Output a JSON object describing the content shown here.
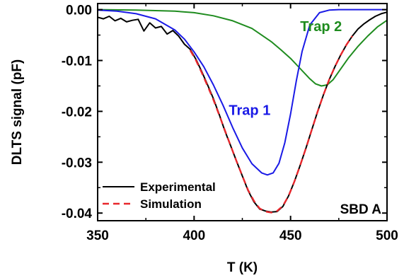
{
  "chart_data": {
    "type": "line",
    "xlabel": "T (K)",
    "ylabel": "DLTS signal (pF)",
    "xlim": [
      350,
      500
    ],
    "ylim": [
      -0.0415,
      0.0012
    ],
    "xticks": [
      350,
      400,
      450,
      500
    ],
    "xtick_labels": [
      "350",
      "400",
      "450",
      "500"
    ],
    "yticks": [
      0.0,
      -0.01,
      -0.02,
      -0.03,
      -0.04
    ],
    "ytick_labels": [
      "0.00",
      "-0.01",
      "-0.02",
      "-0.03",
      "-0.04"
    ],
    "grid": false,
    "legend_position": "bottom-left",
    "panel_label": "SBD A",
    "series": [
      {
        "name": "Experimental",
        "color": "#000000",
        "style": "solid",
        "x": [
          350,
          353,
          356,
          359,
          362,
          365,
          368,
          371,
          374,
          377,
          380,
          383,
          386,
          389,
          392,
          395,
          398,
          401,
          404,
          407,
          410,
          413,
          416,
          419,
          422,
          425,
          428,
          431,
          434,
          437,
          440,
          443,
          446,
          449,
          452,
          455,
          458,
          461,
          464,
          467,
          470,
          473,
          476,
          479,
          482,
          485,
          488,
          491,
          494,
          497,
          500
        ],
        "y": [
          -0.0015,
          -0.0018,
          -0.0013,
          -0.0022,
          -0.0017,
          -0.0024,
          -0.0021,
          -0.0019,
          -0.0042,
          -0.0026,
          -0.0036,
          -0.0033,
          -0.0048,
          -0.0041,
          -0.0052,
          -0.0068,
          -0.0078,
          -0.0098,
          -0.0122,
          -0.0148,
          -0.0175,
          -0.0206,
          -0.0239,
          -0.0268,
          -0.0298,
          -0.0327,
          -0.0356,
          -0.0378,
          -0.0392,
          -0.0396,
          -0.0398,
          -0.0397,
          -0.0387,
          -0.0366,
          -0.0338,
          -0.0306,
          -0.0272,
          -0.0236,
          -0.0201,
          -0.0168,
          -0.0138,
          -0.0112,
          -0.0089,
          -0.0069,
          -0.0052,
          -0.0038,
          -0.0028,
          -0.002,
          -0.0013,
          -0.0008,
          -0.0005
        ]
      },
      {
        "name": "Simulation",
        "color": "#e8262b",
        "style": "dashed",
        "x": [
          398,
          401,
          404,
          407,
          410,
          413,
          416,
          419,
          422,
          425,
          428,
          431,
          434,
          437,
          440,
          443,
          446,
          449,
          452,
          455,
          458,
          461,
          464,
          467,
          470,
          473,
          476,
          479,
          482
        ],
        "y": [
          -0.008,
          -0.01,
          -0.0124,
          -0.015,
          -0.0177,
          -0.0207,
          -0.0238,
          -0.0268,
          -0.0298,
          -0.0327,
          -0.0355,
          -0.0376,
          -0.0391,
          -0.0397,
          -0.0399,
          -0.0396,
          -0.0386,
          -0.0366,
          -0.0338,
          -0.0306,
          -0.0272,
          -0.0236,
          -0.0201,
          -0.0168,
          -0.0138,
          -0.0112,
          -0.0089,
          -0.0069,
          -0.0052
        ]
      },
      {
        "name": "Trap 1",
        "color": "#1a1ae6",
        "style": "solid",
        "x": [
          350,
          360,
          370,
          380,
          390,
          395,
          400,
          405,
          410,
          415,
          420,
          425,
          430,
          435,
          438,
          441,
          444,
          447,
          450,
          453,
          456,
          460,
          465,
          470,
          475,
          480,
          490,
          500
        ],
        "y": [
          -0.0001,
          -0.0003,
          -0.0008,
          -0.0018,
          -0.004,
          -0.0058,
          -0.0083,
          -0.0112,
          -0.0148,
          -0.0188,
          -0.0232,
          -0.0272,
          -0.0303,
          -0.0321,
          -0.0325,
          -0.0321,
          -0.0302,
          -0.0262,
          -0.0205,
          -0.014,
          -0.0082,
          -0.003,
          -0.0006,
          -0.0001,
          0.0,
          0.0,
          0.0,
          0.0
        ]
      },
      {
        "name": "Trap 2",
        "color": "#1f8c1f",
        "style": "solid",
        "x": [
          350,
          370,
          390,
          400,
          410,
          420,
          430,
          440,
          445,
          450,
          455,
          460,
          463,
          466,
          469,
          472,
          475,
          480,
          485,
          490,
          495,
          500
        ],
        "y": [
          0.0,
          -0.0001,
          -0.0003,
          -0.0006,
          -0.0012,
          -0.0022,
          -0.0037,
          -0.0063,
          -0.0079,
          -0.0096,
          -0.0116,
          -0.0136,
          -0.0146,
          -0.015,
          -0.0148,
          -0.0138,
          -0.0122,
          -0.0095,
          -0.0072,
          -0.0052,
          -0.0034,
          -0.0021
        ]
      }
    ],
    "annotations": [
      {
        "text": "Trap 2",
        "color": "#1f8c1f",
        "x": 455,
        "y": -0.0042
      },
      {
        "text": "Trap 1",
        "color": "#1a1ae6",
        "x": 418,
        "y": -0.0207
      }
    ]
  }
}
